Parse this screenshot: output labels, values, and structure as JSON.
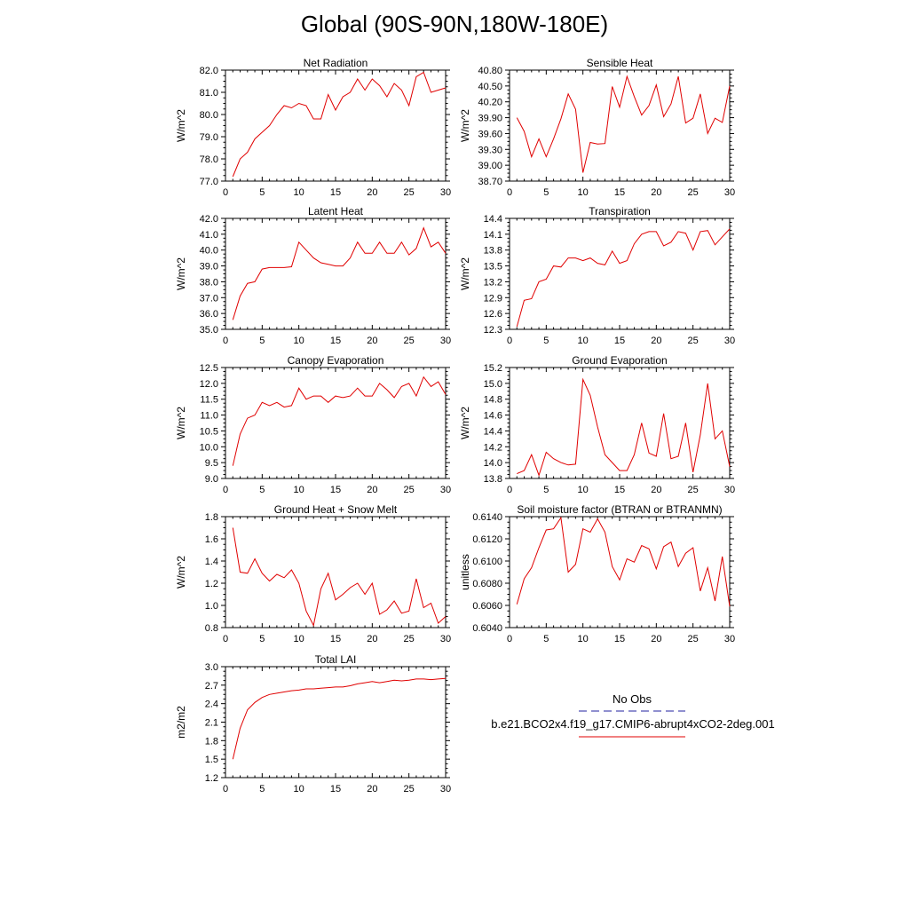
{
  "title": "Global (90S-90N,180W-180E)",
  "colors": {
    "model_line": "#e00000",
    "obs_line": "#2020a0",
    "axis": "#000000"
  },
  "legend": {
    "obs_label": "No Obs",
    "model_label": "b.e21.BCO2x4.f19_g17.CMIP6-abrupt4xCO2-2deg.001"
  },
  "chart_data": [
    {
      "type": "line",
      "title": "Net Radiation",
      "ylabel": "W/m^2",
      "xlim": [
        0,
        30
      ],
      "xticks": [
        0,
        5,
        10,
        15,
        20,
        25,
        30
      ],
      "ylim": [
        77.0,
        82.0
      ],
      "yticks": [
        77.0,
        78.0,
        79.0,
        80.0,
        81.0,
        82.0
      ],
      "ydec": 1,
      "series": [
        {
          "name": "b.e21.BCO2x4.f19_g17.CMIP6-abrupt4xCO2-2deg.001",
          "x": [
            1,
            2,
            3,
            4,
            5,
            6,
            7,
            8,
            9,
            10,
            11,
            12,
            13,
            14,
            15,
            16,
            17,
            18,
            19,
            20,
            21,
            22,
            23,
            24,
            25,
            26,
            27,
            28,
            29,
            30
          ],
          "values": [
            77.2,
            78.0,
            78.3,
            78.9,
            79.2,
            79.5,
            80.0,
            80.4,
            80.3,
            80.5,
            80.4,
            79.8,
            79.8,
            80.9,
            80.2,
            80.8,
            81.0,
            81.6,
            81.1,
            81.6,
            81.3,
            80.8,
            81.4,
            81.1,
            80.4,
            81.7,
            81.9,
            81.0,
            81.1,
            81.2
          ]
        }
      ]
    },
    {
      "type": "line",
      "title": "Sensible Heat",
      "ylabel": "W/m^2",
      "xlim": [
        0,
        30
      ],
      "xticks": [
        0,
        5,
        10,
        15,
        20,
        25,
        30
      ],
      "ylim": [
        38.7,
        40.8
      ],
      "yticks": [
        38.7,
        39.0,
        39.3,
        39.6,
        39.9,
        40.2,
        40.5,
        40.8
      ],
      "ydec": 2,
      "series": [
        {
          "name": "b.e21.BCO2x4.f19_g17.CMIP6-abrupt4xCO2-2deg.001",
          "x": [
            1,
            2,
            3,
            4,
            5,
            6,
            7,
            8,
            9,
            10,
            11,
            12,
            13,
            14,
            15,
            16,
            17,
            18,
            19,
            20,
            21,
            22,
            23,
            24,
            25,
            26,
            27,
            28,
            29,
            30
          ],
          "values": [
            39.9,
            39.64,
            39.16,
            39.5,
            39.16,
            39.5,
            39.88,
            40.35,
            40.06,
            38.86,
            39.43,
            39.4,
            39.41,
            40.49,
            40.1,
            40.68,
            40.3,
            39.95,
            40.13,
            40.52,
            39.92,
            40.16,
            40.68,
            39.8,
            39.89,
            40.35,
            39.6,
            39.89,
            39.81,
            40.5
          ]
        }
      ]
    },
    {
      "type": "line",
      "title": "Latent Heat",
      "ylabel": "W/m^2",
      "xlim": [
        0,
        30
      ],
      "xticks": [
        0,
        5,
        10,
        15,
        20,
        25,
        30
      ],
      "ylim": [
        35.0,
        42.0
      ],
      "yticks": [
        35.0,
        36.0,
        37.0,
        38.0,
        39.0,
        40.0,
        41.0,
        42.0
      ],
      "ydec": 1,
      "series": [
        {
          "name": "b.e21.BCO2x4.f19_g17.CMIP6-abrupt4xCO2-2deg.001",
          "x": [
            1,
            2,
            3,
            4,
            5,
            6,
            7,
            8,
            9,
            10,
            11,
            12,
            13,
            14,
            15,
            16,
            17,
            18,
            19,
            20,
            21,
            22,
            23,
            24,
            25,
            26,
            27,
            28,
            29,
            30
          ],
          "values": [
            35.6,
            37.1,
            37.9,
            38.0,
            38.8,
            38.9,
            38.9,
            38.9,
            38.95,
            40.5,
            40.0,
            39.5,
            39.2,
            39.1,
            39.0,
            39.0,
            39.5,
            40.5,
            39.8,
            39.8,
            40.5,
            39.8,
            39.8,
            40.5,
            39.7,
            40.1,
            41.4,
            40.2,
            40.5,
            39.8
          ]
        }
      ]
    },
    {
      "type": "line",
      "title": "Transpiration",
      "ylabel": "W/m^2",
      "xlim": [
        0,
        30
      ],
      "xticks": [
        0,
        5,
        10,
        15,
        20,
        25,
        30
      ],
      "ylim": [
        12.3,
        14.4
      ],
      "yticks": [
        12.3,
        12.6,
        12.9,
        13.2,
        13.5,
        13.8,
        14.1,
        14.4
      ],
      "ydec": 1,
      "series": [
        {
          "name": "b.e21.BCO2x4.f19_g17.CMIP6-abrupt4xCO2-2deg.001",
          "x": [
            1,
            2,
            3,
            4,
            5,
            6,
            7,
            8,
            9,
            10,
            11,
            12,
            13,
            14,
            15,
            16,
            17,
            18,
            19,
            20,
            21,
            22,
            23,
            24,
            25,
            26,
            27,
            28,
            29,
            30
          ],
          "values": [
            12.35,
            12.85,
            12.88,
            13.2,
            13.25,
            13.5,
            13.48,
            13.65,
            13.65,
            13.6,
            13.65,
            13.55,
            13.52,
            13.78,
            13.55,
            13.6,
            13.92,
            14.1,
            14.15,
            14.15,
            13.88,
            13.95,
            14.15,
            14.12,
            13.8,
            14.15,
            14.17,
            13.9,
            14.05,
            14.2
          ]
        }
      ]
    },
    {
      "type": "line",
      "title": "Canopy Evaporation",
      "ylabel": "W/m^2",
      "xlim": [
        0,
        30
      ],
      "xticks": [
        0,
        5,
        10,
        15,
        20,
        25,
        30
      ],
      "ylim": [
        9.0,
        12.5
      ],
      "yticks": [
        9.0,
        9.5,
        10.0,
        10.5,
        11.0,
        11.5,
        12.0,
        12.5
      ],
      "ydec": 1,
      "series": [
        {
          "name": "b.e21.BCO2x4.f19_g17.CMIP6-abrupt4xCO2-2deg.001",
          "x": [
            1,
            2,
            3,
            4,
            5,
            6,
            7,
            8,
            9,
            10,
            11,
            12,
            13,
            14,
            15,
            16,
            17,
            18,
            19,
            20,
            21,
            22,
            23,
            24,
            25,
            26,
            27,
            28,
            29,
            30
          ],
          "values": [
            9.4,
            10.4,
            10.9,
            11.0,
            11.4,
            11.3,
            11.4,
            11.25,
            11.3,
            11.85,
            11.5,
            11.6,
            11.6,
            11.4,
            11.6,
            11.55,
            11.6,
            11.85,
            11.6,
            11.6,
            12.0,
            11.8,
            11.55,
            11.9,
            12.0,
            11.6,
            12.2,
            11.9,
            12.05,
            11.65
          ]
        }
      ]
    },
    {
      "type": "line",
      "title": "Ground Evaporation",
      "ylabel": "W/m^2",
      "xlim": [
        0,
        30
      ],
      "xticks": [
        0,
        5,
        10,
        15,
        20,
        25,
        30
      ],
      "ylim": [
        13.8,
        15.2
      ],
      "yticks": [
        13.8,
        14.0,
        14.2,
        14.4,
        14.6,
        14.8,
        15.0,
        15.2
      ],
      "ydec": 1,
      "series": [
        {
          "name": "b.e21.BCO2x4.f19_g17.CMIP6-abrupt4xCO2-2deg.001",
          "x": [
            1,
            2,
            3,
            4,
            5,
            6,
            7,
            8,
            9,
            10,
            11,
            12,
            13,
            14,
            15,
            16,
            17,
            18,
            19,
            20,
            21,
            22,
            23,
            24,
            25,
            26,
            27,
            28,
            29,
            30
          ],
          "values": [
            13.86,
            13.9,
            14.1,
            13.84,
            14.13,
            14.05,
            14.0,
            13.97,
            13.98,
            15.05,
            14.85,
            14.45,
            14.1,
            14.0,
            13.9,
            13.9,
            14.1,
            14.5,
            14.12,
            14.08,
            14.62,
            14.05,
            14.08,
            14.5,
            13.88,
            14.35,
            15.0,
            14.3,
            14.4,
            13.95
          ]
        }
      ]
    },
    {
      "type": "line",
      "title": "Ground Heat + Snow Melt",
      "ylabel": "W/m^2",
      "xlim": [
        0,
        30
      ],
      "xticks": [
        0,
        5,
        10,
        15,
        20,
        25,
        30
      ],
      "ylim": [
        0.8,
        1.8
      ],
      "yticks": [
        0.8,
        1.0,
        1.2,
        1.4,
        1.6,
        1.8
      ],
      "ydec": 1,
      "series": [
        {
          "name": "b.e21.BCO2x4.f19_g17.CMIP6-abrupt4xCO2-2deg.001",
          "x": [
            1,
            2,
            3,
            4,
            5,
            6,
            7,
            8,
            9,
            10,
            11,
            12,
            13,
            14,
            15,
            16,
            17,
            18,
            19,
            20,
            21,
            22,
            23,
            24,
            25,
            26,
            27,
            28,
            29,
            30
          ],
          "values": [
            1.7,
            1.3,
            1.29,
            1.42,
            1.29,
            1.22,
            1.28,
            1.25,
            1.32,
            1.2,
            0.95,
            0.82,
            1.15,
            1.29,
            1.05,
            1.1,
            1.16,
            1.2,
            1.1,
            1.2,
            0.92,
            0.96,
            1.04,
            0.93,
            0.95,
            1.24,
            0.98,
            1.02,
            0.84,
            0.9
          ]
        }
      ]
    },
    {
      "type": "line",
      "title": "Soil moisture factor (BTRAN or BTRANMN)",
      "ylabel": "unitless",
      "xlim": [
        0,
        30
      ],
      "xticks": [
        0,
        5,
        10,
        15,
        20,
        25,
        30
      ],
      "ylim": [
        0.604,
        0.614
      ],
      "yticks": [
        0.604,
        0.606,
        0.608,
        0.61,
        0.612,
        0.614
      ],
      "ydec": 4,
      "series": [
        {
          "name": "b.e21.BCO2x4.f19_g17.CMIP6-abrupt4xCO2-2deg.001",
          "x": [
            1,
            2,
            3,
            4,
            5,
            6,
            7,
            8,
            9,
            10,
            11,
            12,
            13,
            14,
            15,
            16,
            17,
            18,
            19,
            20,
            21,
            22,
            23,
            24,
            25,
            26,
            27,
            28,
            29,
            30
          ],
          "values": [
            0.6061,
            0.6084,
            0.6094,
            0.6112,
            0.6128,
            0.6129,
            0.6139,
            0.609,
            0.6097,
            0.6129,
            0.6126,
            0.6138,
            0.6126,
            0.6095,
            0.6083,
            0.6102,
            0.6099,
            0.6114,
            0.6111,
            0.6093,
            0.6113,
            0.6117,
            0.6095,
            0.6107,
            0.6112,
            0.6073,
            0.6094,
            0.6064,
            0.6104,
            0.6059
          ]
        }
      ]
    },
    {
      "type": "line",
      "title": "Total LAI",
      "ylabel": "m2/m2",
      "xlim": [
        0,
        30
      ],
      "xticks": [
        0,
        5,
        10,
        15,
        20,
        25,
        30
      ],
      "ylim": [
        1.2,
        3.0
      ],
      "yticks": [
        1.2,
        1.5,
        1.8,
        2.1,
        2.4,
        2.7,
        3.0
      ],
      "ydec": 1,
      "series": [
        {
          "name": "b.e21.BCO2x4.f19_g17.CMIP6-abrupt4xCO2-2deg.001",
          "x": [
            1,
            2,
            3,
            4,
            5,
            6,
            7,
            8,
            9,
            10,
            11,
            12,
            13,
            14,
            15,
            16,
            17,
            18,
            19,
            20,
            21,
            22,
            23,
            24,
            25,
            26,
            27,
            28,
            29,
            30
          ],
          "values": [
            1.5,
            2.0,
            2.3,
            2.42,
            2.5,
            2.55,
            2.57,
            2.59,
            2.61,
            2.62,
            2.64,
            2.64,
            2.65,
            2.66,
            2.67,
            2.67,
            2.69,
            2.72,
            2.74,
            2.76,
            2.74,
            2.76,
            2.78,
            2.77,
            2.78,
            2.8,
            2.8,
            2.79,
            2.8,
            2.81
          ]
        }
      ]
    }
  ]
}
